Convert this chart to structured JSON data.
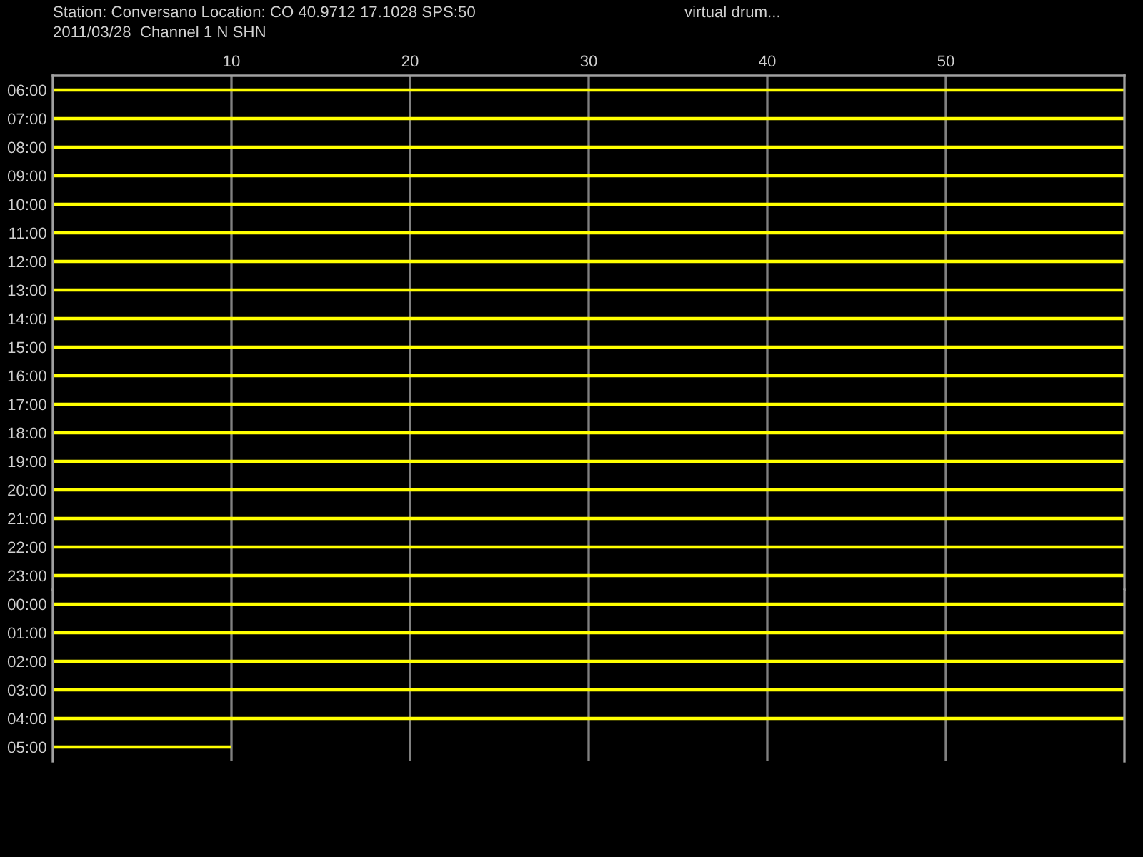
{
  "chart_data": [
    {
      "type": "line",
      "title": "Station: Conversano Location: CO 40.9712 17.1028 SPS:50",
      "subtitle": "2011/03/28  Channel 1 N SHN",
      "annotations": [
        "virtual drum..."
      ],
      "xlim": [
        0,
        60
      ],
      "xticks": [
        10,
        20,
        30,
        40,
        50
      ],
      "ylim": [
        23.5,
        5.5
      ],
      "yticks": [
        {
          "value": 6,
          "label": "06:00"
        },
        {
          "value": 7,
          "label": "07:00"
        },
        {
          "value": 8,
          "label": "08:00"
        },
        {
          "value": 9,
          "label": "09:00"
        },
        {
          "value": 10,
          "label": "10:00"
        },
        {
          "value": 11,
          "label": "11:00"
        },
        {
          "value": 12,
          "label": "12:00"
        },
        {
          "value": 13,
          "label": "13:00"
        },
        {
          "value": 14,
          "label": "14:00"
        },
        {
          "value": 15,
          "label": "15:00"
        },
        {
          "value": 16,
          "label": "16:00"
        },
        {
          "value": 17,
          "label": "17:00"
        },
        {
          "value": 18,
          "label": "18:00"
        },
        {
          "value": 19,
          "label": "19:00"
        },
        {
          "value": 20,
          "label": "20:00"
        },
        {
          "value": 21,
          "label": "21:00"
        },
        {
          "value": 22,
          "label": "22:00"
        },
        {
          "value": 23,
          "label": "23:00"
        }
      ],
      "grid": "x",
      "line_style": "solid",
      "series": [
        {
          "color": "#ffff00",
          "x": [
            0,
            60
          ],
          "values": [
            6,
            6
          ]
        },
        {
          "color": "#ffff00",
          "x": [
            0,
            60
          ],
          "values": [
            7,
            7
          ]
        },
        {
          "color": "#ffff00",
          "x": [
            0,
            60
          ],
          "values": [
            8,
            8
          ]
        },
        {
          "color": "#ffff00",
          "x": [
            0,
            60
          ],
          "values": [
            9,
            9
          ]
        },
        {
          "color": "#ffff00",
          "x": [
            0,
            60
          ],
          "values": [
            10,
            10
          ]
        },
        {
          "color": "#ffff00",
          "x": [
            0,
            60
          ],
          "values": [
            11,
            11
          ]
        },
        {
          "color": "#ffff00",
          "x": [
            0,
            60
          ],
          "values": [
            12,
            12
          ]
        },
        {
          "color": "#ffff00",
          "x": [
            0,
            60
          ],
          "values": [
            13,
            13
          ]
        },
        {
          "color": "#ffff00",
          "x": [
            0,
            60
          ],
          "values": [
            14,
            14
          ]
        },
        {
          "color": "#ffff00",
          "x": [
            0,
            60
          ],
          "values": [
            15,
            15
          ]
        },
        {
          "color": "#ffff00",
          "x": [
            0,
            60
          ],
          "values": [
            16,
            16
          ]
        },
        {
          "color": "#ffff00",
          "x": [
            0,
            60
          ],
          "values": [
            17,
            17
          ]
        },
        {
          "color": "#ffff00",
          "x": [
            0,
            60
          ],
          "values": [
            18,
            18
          ]
        },
        {
          "color": "#ffff00",
          "x": [
            0,
            60
          ],
          "values": [
            19,
            19
          ]
        },
        {
          "color": "#ffff00",
          "x": [
            0,
            60
          ],
          "values": [
            20,
            20
          ]
        },
        {
          "color": "#ffff00",
          "x": [
            0,
            60
          ],
          "values": [
            21,
            21
          ]
        },
        {
          "color": "#ffff00",
          "x": [
            0,
            60
          ],
          "values": [
            22,
            22
          ]
        },
        {
          "color": "#ffff00",
          "x": [
            0,
            60
          ],
          "values": [
            23,
            23
          ]
        }
      ]
    },
    {
      "type": "line",
      "xlim": [
        0,
        60
      ],
      "xticks": [
        10,
        20,
        30,
        40,
        50
      ],
      "ylim": [
        5.5,
        -0.5
      ],
      "tick_labels": "y",
      "yticks": [
        {
          "value": 0,
          "label": "00:00"
        },
        {
          "value": 1,
          "label": "01:00"
        },
        {
          "value": 2,
          "label": "02:00"
        },
        {
          "value": 3,
          "label": "03:00"
        },
        {
          "value": 4,
          "label": "04:00"
        },
        {
          "value": 5,
          "label": "05:00"
        }
      ],
      "grid": "x",
      "line_style": "solid",
      "series": [
        {
          "color": "#ffff00",
          "x": [
            0,
            60
          ],
          "values": [
            0,
            0
          ]
        },
        {
          "color": "#ffff00",
          "x": [
            0,
            60
          ],
          "values": [
            1,
            1
          ]
        },
        {
          "color": "#ffff00",
          "x": [
            0,
            60
          ],
          "values": [
            2,
            2
          ]
        },
        {
          "color": "#ffff00",
          "x": [
            0,
            60
          ],
          "values": [
            3,
            3
          ]
        },
        {
          "color": "#ffff00",
          "x": [
            0,
            60
          ],
          "values": [
            4,
            4
          ]
        },
        {
          "color": "#ffff00",
          "x": [
            0,
            10
          ],
          "values": [
            5,
            5
          ]
        }
      ]
    }
  ]
}
